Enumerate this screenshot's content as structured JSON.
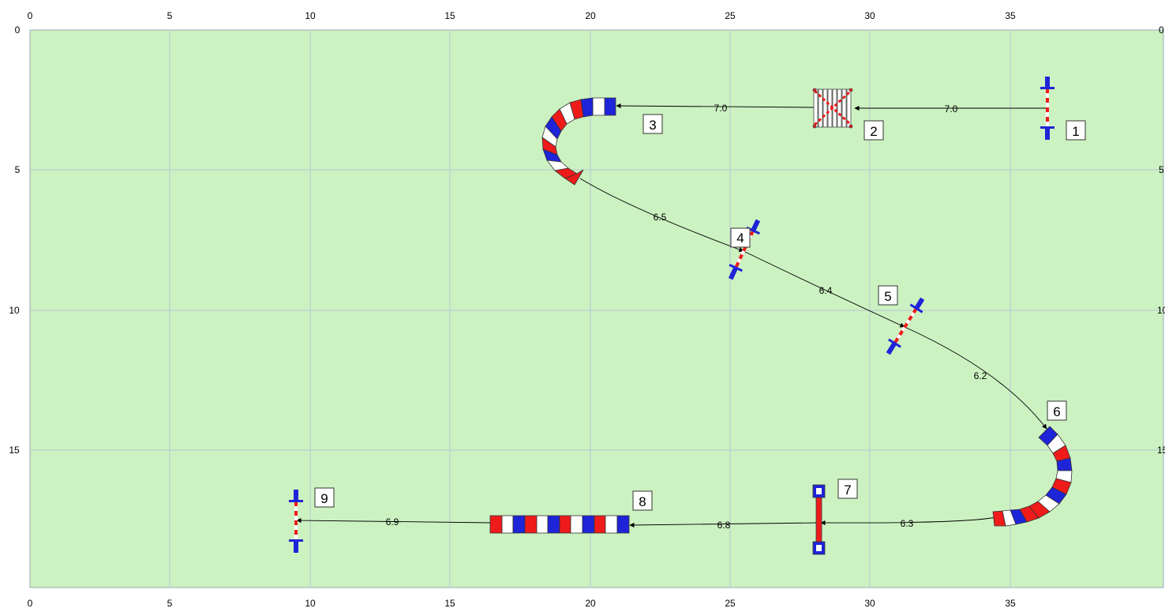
{
  "course": {
    "field_width_m": 40,
    "field_height_m": 20,
    "grid_step_m": 5,
    "x_ticks": [
      "0",
      "5",
      "10",
      "15",
      "20",
      "25",
      "30",
      "35"
    ],
    "y_ticks": [
      "0",
      "5",
      "10",
      "15"
    ],
    "colors": {
      "field": "#ccf2c1",
      "grid": "#b8c6d6",
      "red": "#ef1b1b",
      "blue": "#1e24d8",
      "white": "#ffffff",
      "outline": "#333333"
    },
    "obstacles": [
      {
        "number": "1",
        "type": "upright-vertical"
      },
      {
        "number": "2",
        "type": "oxer-triple-bar"
      },
      {
        "number": "3",
        "type": "curved-wall-left-turn"
      },
      {
        "number": "4",
        "type": "upright-diagonal"
      },
      {
        "number": "5",
        "type": "upright-diagonal"
      },
      {
        "number": "6",
        "type": "curved-wall-right-turn"
      },
      {
        "number": "7",
        "type": "upright-with-wings"
      },
      {
        "number": "8",
        "type": "straight-wall"
      },
      {
        "number": "9",
        "type": "upright-vertical"
      }
    ],
    "distances": [
      {
        "label": "7.0",
        "from": "1",
        "to": "2"
      },
      {
        "label": "7.0",
        "from": "2",
        "to": "3"
      },
      {
        "label": "6.5",
        "from": "3",
        "to": "4"
      },
      {
        "label": "6.4",
        "from": "4",
        "to": "5"
      },
      {
        "label": "6.2",
        "from": "5",
        "to": "6"
      },
      {
        "label": "6.3",
        "from": "6",
        "to": "7"
      },
      {
        "label": "6.8",
        "from": "7",
        "to": "8"
      },
      {
        "label": "6.9",
        "from": "8",
        "to": "9"
      }
    ]
  }
}
